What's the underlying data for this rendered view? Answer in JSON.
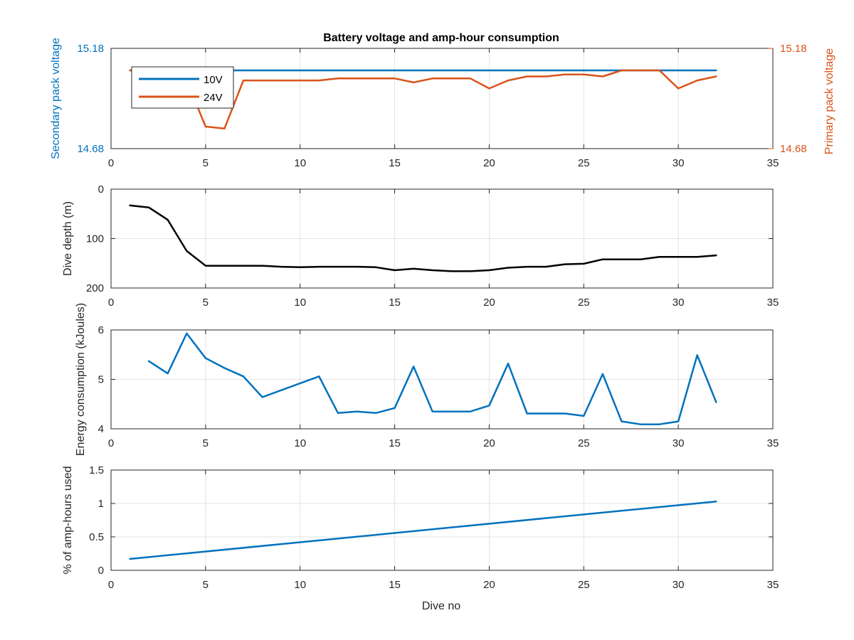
{
  "colors": {
    "blue": "#0072BD",
    "orange": "#D95319",
    "black": "#000000",
    "axis": "#262626",
    "grid": "#e3e3e3"
  },
  "chart_data": [
    {
      "type": "line",
      "title": "Battery voltage and amp-hour consumption",
      "xlim": [
        0,
        35
      ],
      "x_ticks": [
        0,
        5,
        10,
        15,
        20,
        25,
        30,
        35
      ],
      "ylim": [
        14.68,
        15.18
      ],
      "y_ticks": [
        14.68,
        15.18
      ],
      "ylabel": "Secondary pack voltage",
      "ylabel_right": "Primary pack voltage",
      "y_ticks_right": [
        14.68,
        15.18
      ],
      "grid": true,
      "legend": {
        "placement": "top-left",
        "entries": [
          "10V",
          "24V"
        ]
      },
      "series": [
        {
          "name": "10V",
          "axis": "left",
          "color": "#0072BD",
          "x": [
            1,
            32
          ],
          "y": [
            15.07,
            15.07
          ]
        },
        {
          "name": "24V",
          "axis": "right",
          "color": "#D95319",
          "x": [
            1,
            2,
            3,
            4,
            5,
            6,
            7,
            8,
            9,
            10,
            11,
            12,
            13,
            14,
            15,
            16,
            17,
            18,
            19,
            20,
            21,
            22,
            23,
            24,
            25,
            26,
            27,
            28,
            29,
            30,
            31,
            32
          ],
          "y": [
            15.07,
            15.07,
            15.07,
            15.02,
            14.79,
            14.78,
            15.02,
            15.02,
            15.02,
            15.02,
            15.02,
            15.03,
            15.03,
            15.03,
            15.03,
            15.01,
            15.03,
            15.03,
            15.03,
            14.98,
            15.02,
            15.04,
            15.04,
            15.05,
            15.05,
            15.04,
            15.07,
            15.07,
            15.07,
            14.98,
            15.02,
            15.04
          ]
        }
      ]
    },
    {
      "type": "line",
      "xlim": [
        0,
        35
      ],
      "x_ticks": [
        0,
        5,
        10,
        15,
        20,
        25,
        30,
        35
      ],
      "ylim": [
        0,
        200
      ],
      "y_reversed": true,
      "y_ticks": [
        0,
        100,
        200
      ],
      "ylabel": "Dive depth (m)",
      "grid": true,
      "series": [
        {
          "color": "#000000",
          "x": [
            1,
            2,
            3,
            4,
            5,
            6,
            7,
            8,
            9,
            10,
            11,
            12,
            13,
            14,
            15,
            16,
            17,
            18,
            19,
            20,
            21,
            22,
            23,
            24,
            25,
            26,
            27,
            28,
            29,
            30,
            31,
            32
          ],
          "y": [
            33,
            37,
            62,
            125,
            155,
            155,
            155,
            155,
            157,
            158,
            157,
            157,
            157,
            158,
            164,
            161,
            164,
            166,
            166,
            164,
            159,
            157,
            157,
            152,
            151,
            142,
            142,
            142,
            137,
            137,
            137,
            134
          ]
        }
      ]
    },
    {
      "type": "line",
      "xlim": [
        0,
        35
      ],
      "x_ticks": [
        0,
        5,
        10,
        15,
        20,
        25,
        30,
        35
      ],
      "ylim": [
        4,
        6
      ],
      "y_ticks": [
        4,
        5,
        6
      ],
      "ylabel": "Energy consumption (kJoules)",
      "grid": true,
      "series": [
        {
          "color": "#0072BD",
          "x": [
            2,
            3,
            4,
            5,
            6,
            7,
            8,
            11,
            12,
            13,
            14,
            15,
            16,
            17,
            18,
            19,
            20,
            21,
            22,
            23,
            24,
            25,
            26,
            27,
            28,
            29,
            30,
            31,
            32
          ],
          "y": [
            5.37,
            5.12,
            5.93,
            5.43,
            5.23,
            5.06,
            4.64,
            5.06,
            4.32,
            4.35,
            4.32,
            4.42,
            5.26,
            4.35,
            4.35,
            4.35,
            4.47,
            5.32,
            4.31,
            4.31,
            4.31,
            4.26,
            5.11,
            4.15,
            4.09,
            4.09,
            4.15,
            5.49,
            4.54
          ]
        }
      ]
    },
    {
      "type": "line",
      "xlim": [
        0,
        35
      ],
      "x_ticks": [
        0,
        5,
        10,
        15,
        20,
        25,
        30,
        35
      ],
      "ylim": [
        0,
        1.5
      ],
      "y_ticks": [
        0,
        0.5,
        1,
        1.5
      ],
      "y_tick_labels": [
        "0",
        "0.5",
        "1",
        "1.5"
      ],
      "ylabel": "% of amp-hours used",
      "xlabel": "Dive no",
      "grid": true,
      "series": [
        {
          "color": "#0072BD",
          "x": [
            1,
            32
          ],
          "y": [
            0.17,
            1.03
          ]
        }
      ]
    }
  ]
}
